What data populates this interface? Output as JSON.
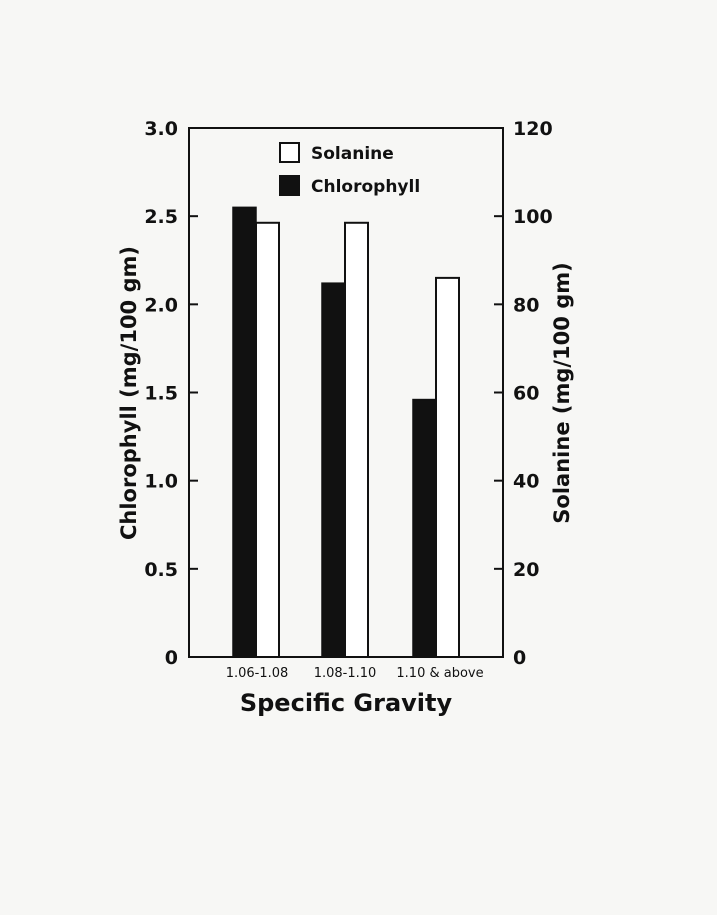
{
  "chart_data": {
    "type": "bar",
    "title": "",
    "xlabel": "Specific Gravity",
    "categories": [
      "1.06-1.08",
      "1.08-1.10",
      "1.10 & above"
    ],
    "y_left": {
      "label": "Chlorophyll (mg/100 gm)",
      "lim": [
        0,
        3.0
      ],
      "ticks": [
        "0",
        "0.5",
        "1.0",
        "1.5",
        "2.0",
        "2.5",
        "3.0"
      ]
    },
    "y_right": {
      "label": "Solanine (mg/100 gm)",
      "lim": [
        0,
        120
      ],
      "ticks": [
        "0",
        "20",
        "40",
        "60",
        "80",
        "100",
        "120"
      ]
    },
    "series": [
      {
        "name": "Chlorophyll",
        "axis": "left",
        "fill": "#111111",
        "values": [
          2.55,
          2.12,
          1.46
        ]
      },
      {
        "name": "Solanine",
        "axis": "right",
        "fill": "#ffffff",
        "values": [
          98.5,
          98.5,
          86
        ]
      }
    ],
    "legend": {
      "position": "top",
      "entries": [
        "Solanine",
        "Chlorophyll"
      ]
    },
    "grid": false
  }
}
